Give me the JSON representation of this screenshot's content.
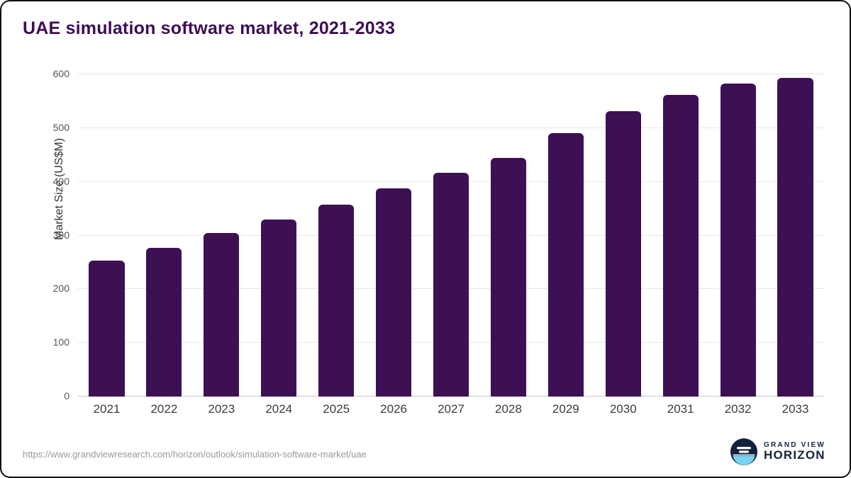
{
  "title": "UAE simulation software market, 2021-2033",
  "footer": {
    "source_url": "https://www.grandviewresearch.com/horizon/outlook/simulation-software-market/uae"
  },
  "logo": {
    "line1": "GRAND VIEW",
    "line2": "HORIZON"
  },
  "chart_data": {
    "type": "bar",
    "title": "UAE simulation software market, 2021-2033",
    "categories": [
      "2021",
      "2022",
      "2023",
      "2024",
      "2025",
      "2026",
      "2027",
      "2028",
      "2029",
      "2030",
      "2031",
      "2032",
      "2033"
    ],
    "values": [
      253,
      277,
      305,
      330,
      358,
      388,
      417,
      444,
      490,
      531,
      562,
      583,
      594
    ],
    "xlabel": "",
    "ylabel": "Market Size (US$M)",
    "ylim": [
      0,
      600
    ],
    "yticks": [
      0,
      100,
      200,
      300,
      400,
      500,
      600
    ],
    "bar_color": "#3d1054",
    "grid": "horizontal",
    "legend": "none"
  }
}
